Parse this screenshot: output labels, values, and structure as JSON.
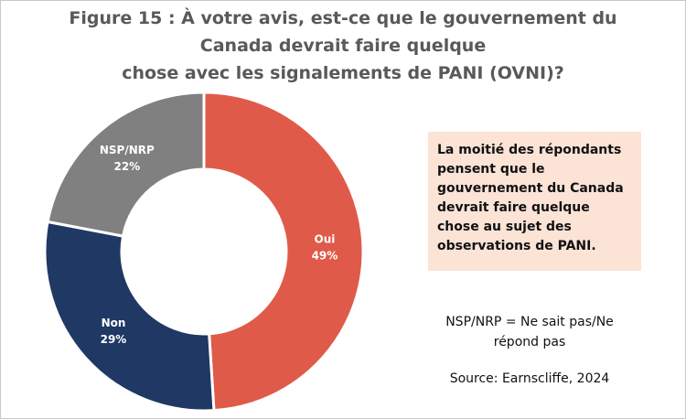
{
  "chart_data": {
    "type": "donut",
    "title": [
      "Figure 15 : À votre avis, est-ce que le gouvernement du",
      "Canada devrait faire quelque",
      "chose avec les signalements de PANI (OVNI)?"
    ],
    "categories": [
      "Oui",
      "Non",
      "NSP/NRP"
    ],
    "values": [
      49,
      29,
      22
    ],
    "value_labels": [
      "49%",
      "29%",
      "22%"
    ],
    "colors": [
      "#e05a49",
      "#1f3864",
      "#808080"
    ],
    "annotation": "La moitié des répondants pensent que le gouvernement du Canada devrait faire quelque chose au sujet des observations de PANI.",
    "notes": [
      "NSP/NRP = Ne sait pas/Ne répond pas",
      "Source: Earnscliffe, 2024"
    ]
  }
}
